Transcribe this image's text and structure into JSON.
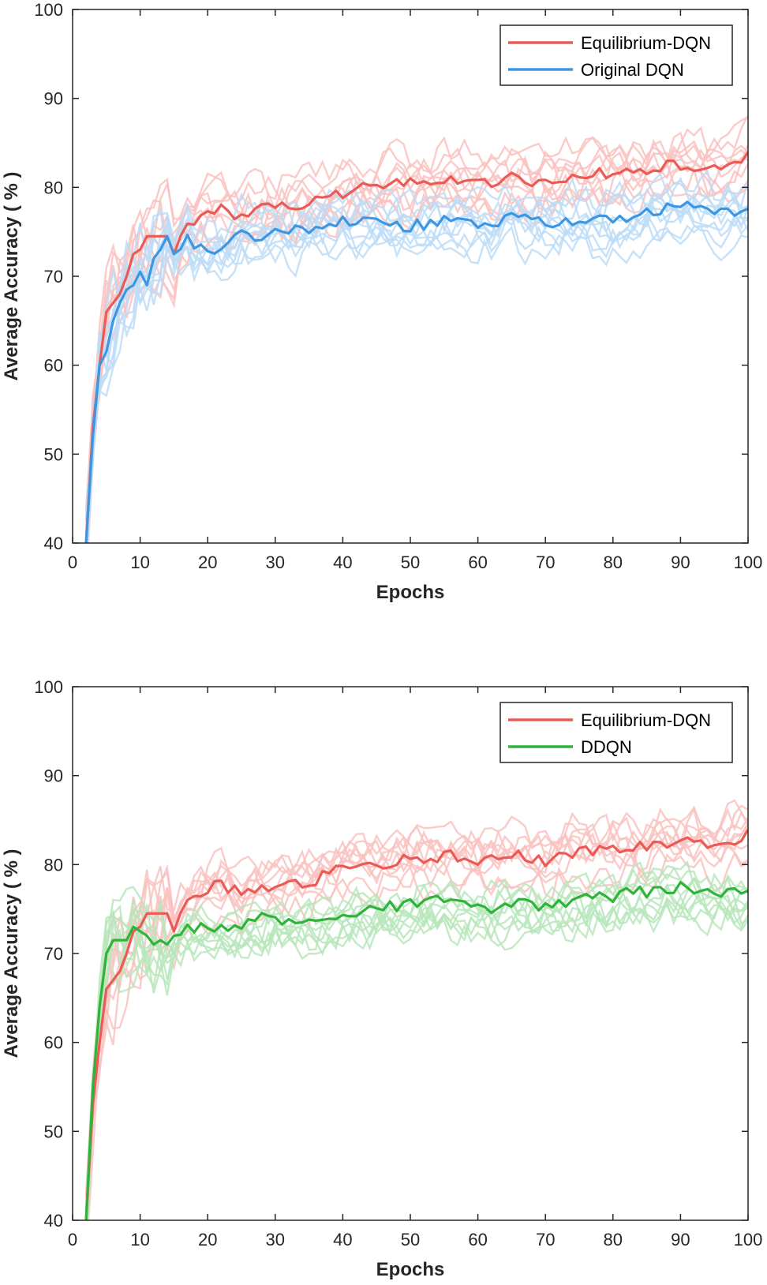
{
  "chart_data": [
    {
      "type": "line",
      "title": "",
      "xlabel": "Epochs",
      "ylabel": "Average Accuracy ( % )",
      "xlim": [
        0,
        100
      ],
      "ylim": [
        40,
        100
      ],
      "xticks": [
        "0",
        "10",
        "20",
        "30",
        "40",
        "50",
        "60",
        "70",
        "80",
        "90",
        "100"
      ],
      "yticks": [
        "40",
        "50",
        "60",
        "70",
        "80",
        "90",
        "100"
      ],
      "grid": false,
      "legend_placement": "top-right",
      "series": [
        {
          "name": "Equilibrium-DQN",
          "color": "#ec5a55",
          "trial_color": "#f9c2bf",
          "trial_count": 10,
          "x": [
            2,
            3,
            4,
            5,
            6,
            7,
            8,
            9,
            10,
            11,
            12,
            13,
            14,
            15,
            16,
            17,
            18,
            20,
            22,
            25,
            28,
            30,
            35,
            40,
            45,
            50,
            55,
            60,
            65,
            70,
            75,
            80,
            85,
            90,
            95,
            100
          ],
          "values": [
            40,
            53,
            60,
            66,
            67,
            68,
            70,
            72.5,
            73,
            74.5,
            74.5,
            74.5,
            74.5,
            72.5,
            75,
            75.5,
            76,
            77,
            78,
            76.5,
            77.5,
            77.5,
            78,
            79.5,
            80,
            80.5,
            81,
            80.5,
            81,
            80.5,
            81.5,
            81.5,
            82,
            82.5,
            82,
            83.5
          ]
        },
        {
          "name": "Original DQN",
          "color": "#3b96e4",
          "trial_color": "#bcdcf7",
          "trial_count": 10,
          "x": [
            2,
            3,
            4,
            5,
            6,
            7,
            8,
            9,
            10,
            11,
            12,
            13,
            14,
            15,
            16,
            17,
            18,
            20,
            22,
            25,
            28,
            30,
            35,
            40,
            45,
            50,
            55,
            60,
            65,
            70,
            75,
            80,
            85,
            90,
            95,
            100
          ],
          "values": [
            40,
            52,
            60,
            61.5,
            65,
            67,
            68.5,
            69,
            70.5,
            69,
            72,
            73,
            74.5,
            72.5,
            73.5,
            74.5,
            73,
            73,
            72.5,
            75,
            74.5,
            75,
            75.5,
            76.5,
            76,
            75.5,
            76.5,
            75.5,
            76.5,
            76,
            76.5,
            76,
            77,
            78,
            77,
            77
          ]
        }
      ]
    },
    {
      "type": "line",
      "title": "",
      "xlabel": "Epochs",
      "ylabel": "Average Accuracy ( % )",
      "xlim": [
        0,
        100
      ],
      "ylim": [
        40,
        100
      ],
      "xticks": [
        "0",
        "10",
        "20",
        "30",
        "40",
        "50",
        "60",
        "70",
        "80",
        "90",
        "100"
      ],
      "yticks": [
        "40",
        "50",
        "60",
        "70",
        "80",
        "90",
        "100"
      ],
      "grid": false,
      "legend_placement": "top-right",
      "series": [
        {
          "name": "Equilibrium-DQN",
          "color": "#ec5a55",
          "trial_color": "#f9c2bf",
          "trial_count": 10,
          "x": [
            2,
            3,
            4,
            5,
            6,
            7,
            8,
            9,
            10,
            11,
            12,
            13,
            14,
            15,
            16,
            17,
            18,
            20,
            22,
            25,
            28,
            30,
            35,
            40,
            45,
            50,
            55,
            60,
            65,
            70,
            75,
            80,
            85,
            90,
            95,
            100
          ],
          "values": [
            40,
            53,
            60,
            66,
            67,
            68,
            70,
            72.5,
            73,
            74.5,
            74.5,
            74.5,
            74.5,
            72.5,
            75,
            75.5,
            76,
            77,
            78,
            76.5,
            77.5,
            77.5,
            78,
            79.5,
            80,
            80.5,
            81,
            80.5,
            81,
            80.5,
            81.5,
            81.5,
            82,
            82.5,
            82,
            83.5
          ]
        },
        {
          "name": "DDQN",
          "color": "#2fb33a",
          "trial_color": "#b7e6bb",
          "trial_count": 10,
          "x": [
            2,
            3,
            4,
            5,
            6,
            7,
            8,
            9,
            10,
            11,
            12,
            13,
            14,
            15,
            16,
            17,
            18,
            20,
            22,
            25,
            28,
            30,
            35,
            40,
            45,
            50,
            55,
            60,
            65,
            70,
            75,
            80,
            85,
            90,
            95,
            100
          ],
          "values": [
            40,
            55,
            64,
            70,
            71.5,
            71.5,
            71.5,
            73,
            72.5,
            72,
            71,
            71.5,
            71,
            72,
            72.5,
            73,
            73,
            73.5,
            72.5,
            73,
            74,
            74,
            73.5,
            74.5,
            75,
            75.5,
            76,
            75,
            75.5,
            75.5,
            76,
            76.5,
            77,
            77.5,
            77,
            76.5
          ]
        }
      ]
    }
  ]
}
